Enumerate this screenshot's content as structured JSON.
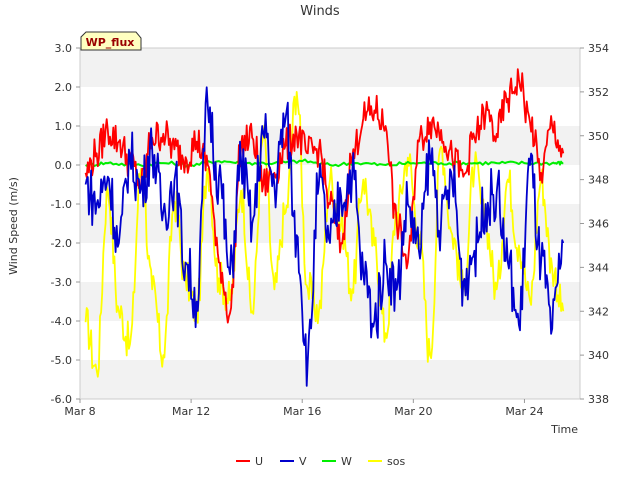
{
  "chart_data": {
    "type": "line",
    "title": "Winds",
    "badge": "WP_flux",
    "xlabel": "Time",
    "ylabel": "Wind Speed (m/s)",
    "x_range_days": [
      0,
      18.0
    ],
    "x_ticks": [
      {
        "day": 0,
        "label": "Mar 8"
      },
      {
        "day": 4,
        "label": "Mar 12"
      },
      {
        "day": 8,
        "label": "Mar 16"
      },
      {
        "day": 12,
        "label": "Mar 20"
      },
      {
        "day": 16,
        "label": "Mar 24"
      }
    ],
    "ylim_left": [
      -6.0,
      3.0
    ],
    "left_ticks": [
      "-6.0",
      "-5.0",
      "-4.0",
      "-3.0",
      "-2.0",
      "-1.0",
      "0.0",
      "1.0",
      "2.0",
      "3.0"
    ],
    "ylim_right": [
      338,
      354
    ],
    "right_ticks": [
      "338",
      "340",
      "342",
      "344",
      "346",
      "348",
      "350",
      "352",
      "354"
    ],
    "grid_bands": true,
    "legend_position": "bottom-center",
    "series": [
      {
        "name": "U",
        "color": "#ff0000",
        "axis": "left",
        "x": [
          0.2,
          0.6,
          1.0,
          1.4,
          1.8,
          2.2,
          2.6,
          3.0,
          3.4,
          3.8,
          4.2,
          4.6,
          5.0,
          5.4,
          5.8,
          6.2,
          6.6,
          7.0,
          7.4,
          7.8,
          8.2,
          8.6,
          9.0,
          9.4,
          9.8,
          10.2,
          10.6,
          11.0,
          11.4,
          11.8,
          12.2,
          12.6,
          13.0,
          13.4,
          13.8,
          14.2,
          14.6,
          15.0,
          15.4,
          15.8,
          16.2,
          16.6,
          17.0,
          17.4
        ],
        "y": [
          -0.2,
          0.3,
          0.9,
          0.6,
          0.1,
          -0.5,
          0.7,
          0.8,
          0.4,
          0.2,
          0.6,
          0.0,
          -2.5,
          -3.8,
          0.5,
          0.7,
          -0.5,
          -0.2,
          0.5,
          0.8,
          0.3,
          0.4,
          -1.0,
          -2.0,
          0.2,
          1.2,
          1.4,
          1.0,
          -1.5,
          -2.5,
          0.6,
          1.1,
          0.9,
          0.2,
          -0.3,
          0.7,
          1.3,
          0.8,
          1.7,
          2.2,
          1.1,
          -0.2,
          1.0,
          0.3
        ]
      },
      {
        "name": "V",
        "color": "#0000cc",
        "axis": "left",
        "x": [
          0.2,
          0.6,
          1.0,
          1.4,
          1.8,
          2.2,
          2.6,
          3.0,
          3.4,
          3.8,
          4.2,
          4.6,
          5.0,
          5.4,
          5.8,
          6.2,
          6.6,
          7.0,
          7.4,
          7.8,
          8.2,
          8.6,
          9.0,
          9.4,
          9.8,
          10.2,
          10.6,
          11.0,
          11.4,
          11.8,
          12.2,
          12.6,
          13.0,
          13.4,
          13.8,
          14.2,
          14.6,
          15.0,
          15.4,
          15.8,
          16.2,
          16.6,
          17.0,
          17.4
        ],
        "y": [
          -0.5,
          -1.0,
          -0.3,
          -2.0,
          0.2,
          -0.6,
          0.4,
          -1.2,
          -0.4,
          -2.5,
          -3.5,
          1.5,
          -0.3,
          -2.8,
          0.1,
          -1.5,
          0.8,
          -0.5,
          1.2,
          -1.8,
          -5.0,
          -0.5,
          -2.0,
          -0.8,
          -0.2,
          -2.8,
          -4.0,
          -2.5,
          -3.2,
          -1.0,
          -2.2,
          0.2,
          -1.5,
          -0.4,
          -3.0,
          -2.2,
          -1.0,
          -0.7,
          -2.5,
          -4.1,
          0.0,
          -2.5,
          -4.2,
          -2.0
        ]
      },
      {
        "name": "W",
        "color": "#00ee00",
        "axis": "left",
        "x": [
          0.2,
          1.0,
          2.0,
          3.0,
          4.0,
          5.0,
          6.0,
          7.0,
          8.0,
          9.0,
          10.0,
          11.0,
          12.0,
          13.0,
          14.0,
          15.0,
          16.0,
          17.0,
          17.4
        ],
        "y": [
          0.0,
          0.05,
          0.0,
          0.05,
          0.0,
          0.1,
          0.05,
          0.05,
          0.1,
          0.0,
          0.05,
          0.0,
          0.05,
          0.05,
          0.05,
          0.05,
          0.05,
          0.05,
          0.05
        ]
      },
      {
        "name": "sos",
        "color": "#ffff00",
        "axis": "right",
        "x": [
          0.2,
          0.6,
          1.0,
          1.4,
          1.8,
          2.2,
          2.6,
          3.0,
          3.4,
          3.8,
          4.2,
          4.6,
          5.0,
          5.4,
          5.8,
          6.2,
          6.6,
          7.0,
          7.4,
          7.8,
          8.2,
          8.6,
          9.0,
          9.4,
          9.8,
          10.2,
          10.6,
          11.0,
          11.4,
          11.8,
          12.2,
          12.6,
          13.0,
          13.4,
          13.8,
          14.2,
          14.6,
          15.0,
          15.4,
          15.8,
          16.2,
          16.6,
          17.0,
          17.4
        ],
        "y": [
          341.5,
          339.3,
          347.5,
          342.0,
          340.5,
          348.5,
          343.0,
          340.0,
          347.0,
          343.5,
          342.0,
          348.5,
          343.5,
          342.5,
          347.5,
          342.0,
          350.0,
          343.0,
          346.5,
          352.0,
          343.0,
          342.0,
          348.0,
          346.0,
          343.0,
          348.0,
          345.0,
          341.0,
          346.5,
          349.0,
          345.5,
          340.0,
          349.5,
          345.5,
          343.0,
          348.5,
          346.0,
          343.0,
          348.0,
          345.0,
          342.5,
          348.0,
          344.0,
          342.0
        ]
      }
    ]
  }
}
